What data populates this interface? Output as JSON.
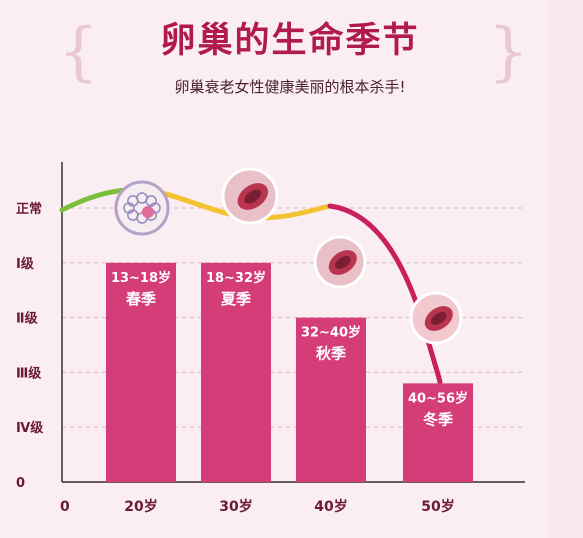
{
  "header": {
    "title": "卵巢的生命季节",
    "subtitle": "卵巢衰老女性健康美丽的根本杀手!"
  },
  "colors": {
    "bar": "#d43d78",
    "title": "#b01a4e",
    "curve_green": "#7cbf3a",
    "curve_yellow": "#f2c230",
    "curve_pink": "#c8205f"
  },
  "chart_data": {
    "type": "bar",
    "title": "卵巢的生命季节",
    "subtitle": "卵巢衰老女性健康美丽的根本杀手!",
    "x_origin_label": "0",
    "categories": [
      "20岁",
      "30岁",
      "40岁",
      "50岁"
    ],
    "y_levels": [
      "0",
      "Ⅳ级",
      "Ⅲ级",
      "Ⅱ级",
      "Ⅰ级",
      "正常"
    ],
    "ylim": [
      0,
      5
    ],
    "values": [
      4,
      4,
      3,
      1.8
    ],
    "bar_labels": [
      {
        "age_range": "13~18岁",
        "season": "春季"
      },
      {
        "age_range": "18~32岁",
        "season": "夏季"
      },
      {
        "age_range": "32~40岁",
        "season": "秋季"
      },
      {
        "age_range": "40~56岁",
        "season": "冬季"
      }
    ],
    "grid": true,
    "curve_segments": [
      "green",
      "yellow",
      "pink"
    ],
    "illustration_icons": [
      "ovary-follicles-icon",
      "ovary-cross-section-icon",
      "ovary-aging-icon",
      "ovary-atrophy-icon"
    ]
  }
}
